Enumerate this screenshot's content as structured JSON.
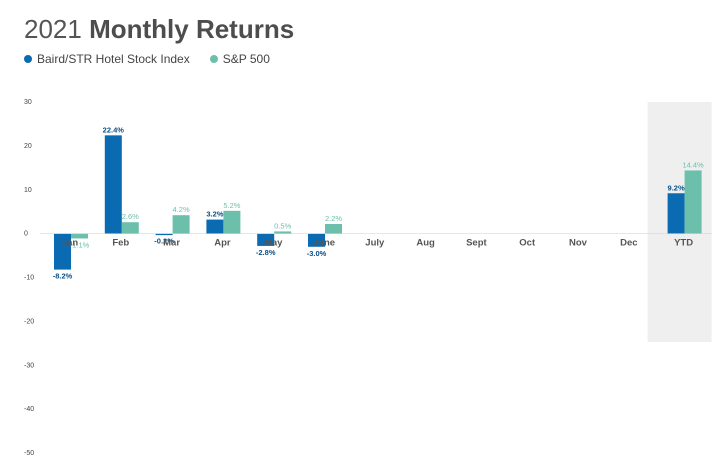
{
  "title": {
    "year": "2021",
    "main": "Monthly Returns"
  },
  "colors": {
    "index": "#0a6ab2",
    "sp500": "#6cbfaa",
    "highlight": "#efefef",
    "axis": "#444444"
  },
  "chart_data": {
    "type": "bar",
    "categories": [
      "Jan",
      "Feb",
      "Mar",
      "Apr",
      "May",
      "June",
      "July",
      "Aug",
      "Sept",
      "Oct",
      "Nov",
      "Dec",
      "YTD"
    ],
    "series": [
      {
        "name": "Baird/STR Hotel Stock Index",
        "values": [
          -8.2,
          22.4,
          -0.2,
          3.2,
          -2.8,
          -3.0,
          null,
          null,
          null,
          null,
          null,
          null,
          9.2
        ],
        "labels": [
          "-8.2%",
          "22.4%",
          "-0.2%",
          "3.2%",
          "-2.8%",
          "-3.0%",
          "",
          "",
          "",
          "",
          "",
          "",
          "9.2%"
        ]
      },
      {
        "name": "S&P 500",
        "values": [
          -1.1,
          2.6,
          4.2,
          5.2,
          0.5,
          2.2,
          null,
          null,
          null,
          null,
          null,
          null,
          14.4
        ],
        "labels": [
          "-1.1%",
          "2.6%",
          "4.2%",
          "5.2%",
          "0.5%",
          "2.2%",
          "",
          "",
          "",
          "",
          "",
          "",
          "14.4%"
        ]
      }
    ],
    "yticks": [
      30,
      20,
      10,
      0,
      -10,
      -20,
      -30,
      -40,
      -50
    ],
    "ylim": [
      -50,
      30
    ],
    "highlight_category": "YTD",
    "legend_position": "top-left"
  }
}
